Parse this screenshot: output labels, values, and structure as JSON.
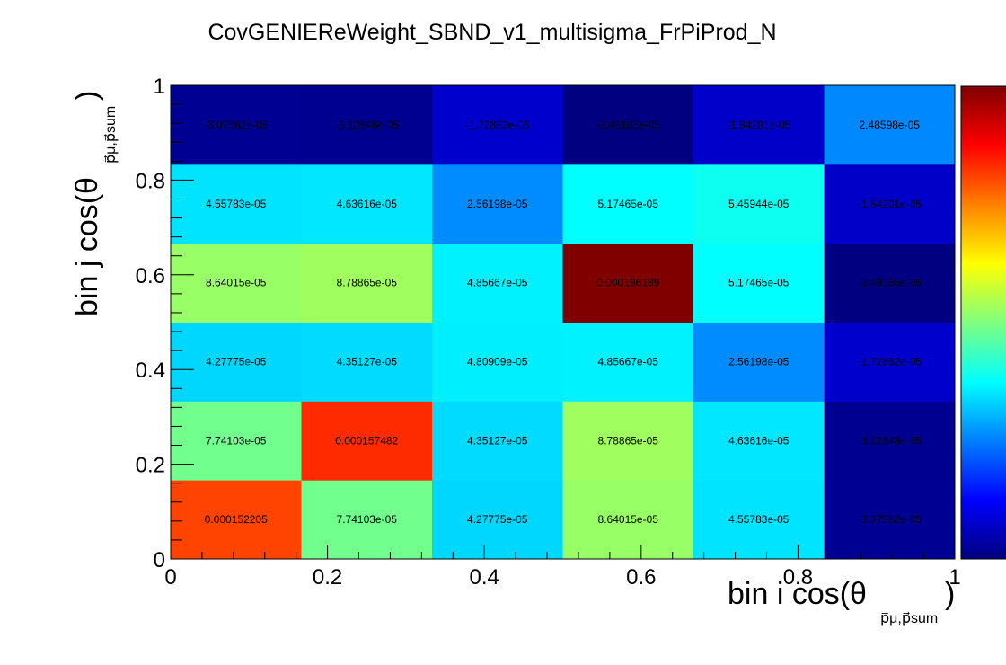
{
  "chart_data": {
    "type": "heatmap",
    "title": "CovGENIEReWeight_SBND_v1_multisigma_FrPiProd_N",
    "xlabel": {
      "main": "bin i cos(θ",
      "sub": "p⃗μ,p⃗sum",
      "close": ")"
    },
    "ylabel": {
      "main": "bin j cos(θ",
      "sub": "p⃗μ,p⃗sum",
      "close": ")"
    },
    "xlim": [
      0,
      1
    ],
    "ylim": [
      0,
      1
    ],
    "x_ticks": [
      "0",
      "0.2",
      "0.4",
      "0.6",
      "0.8",
      "1"
    ],
    "y_ticks": [
      "0",
      "0.2",
      "0.4",
      "0.6",
      "0.8",
      "1"
    ],
    "nx": 6,
    "ny": 6,
    "rows_bottom_to_top": [
      {
        "values": [
          0.000152205,
          7.74103e-05,
          4.27775e-05,
          8.64015e-05,
          4.55783e-05,
          -3.07562e-05
        ],
        "labels": [
          "0.000152205",
          "7.74103e-05",
          "4.27775e-05",
          "8.64015e-05",
          "4.55783e-05",
          "-3.07562e-05"
        ]
      },
      {
        "values": [
          7.74103e-05,
          0.000157482,
          4.35127e-05,
          8.78865e-05,
          4.63616e-05,
          -3.12848e-05
        ],
        "labels": [
          "7.74103e-05",
          "0.000157482",
          "4.35127e-05",
          "8.78865e-05",
          "4.63616e-05",
          "-3.12848e-05"
        ]
      },
      {
        "values": [
          4.27775e-05,
          4.35127e-05,
          4.80909e-05,
          4.85667e-05,
          2.56198e-05,
          -1.72882e-05
        ],
        "labels": [
          "4.27775e-05",
          "4.35127e-05",
          "4.80909e-05",
          "4.85667e-05",
          "2.56198e-05",
          "-1.72882e-05"
        ]
      },
      {
        "values": [
          8.64015e-05,
          8.78865e-05,
          4.85667e-05,
          0.000196189,
          5.17465e-05,
          -3.49185e-05
        ],
        "labels": [
          "8.64015e-05",
          "8.78865e-05",
          "4.85667e-05",
          "0.000196189",
          "5.17465e-05",
          "-3.49185e-05"
        ]
      },
      {
        "values": [
          4.55783e-05,
          4.63616e-05,
          2.56198e-05,
          5.17465e-05,
          5.45944e-05,
          -1.84201e-05
        ],
        "labels": [
          "4.55783e-05",
          "4.63616e-05",
          "2.56198e-05",
          "5.17465e-05",
          "5.45944e-05",
          "-1.84201e-05"
        ]
      },
      {
        "values": [
          -3.07562e-05,
          -3.12848e-05,
          -1.72882e-05,
          -3.49185e-05,
          -1.84201e-05,
          2.48598e-05
        ],
        "labels": [
          "-3.07562e-05",
          "-3.12848e-05",
          "-1.72882e-05",
          "-3.49185e-05",
          "-1.84201e-05",
          "2.48598e-05"
        ]
      }
    ],
    "zlim": [
      -3.49185e-05,
      0.000196189
    ],
    "colormap": "jet",
    "colorbar": "right"
  }
}
